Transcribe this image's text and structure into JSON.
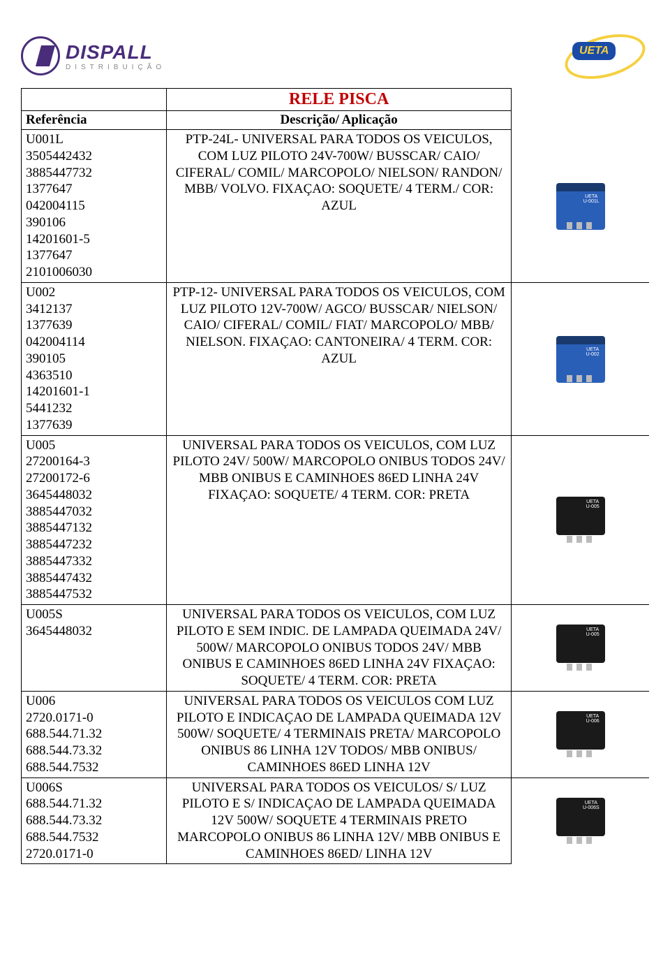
{
  "header": {
    "company": "DISPALL",
    "subtitle": "DISTRIBUIÇÃO",
    "brand": "UETA"
  },
  "title": "RELE PISCA",
  "columns": {
    "ref": "Referência",
    "desc": "Descrição/ Aplicação"
  },
  "rows": [
    {
      "ref": "U001L\n3505442432\n3885447732\n1377647\n042004115\n390106\n14201601-5\n1377647\n2101006030",
      "desc": "PTP-24L- UNIVERSAL PARA TODOS OS VEICULOS, COM LUZ PILOTO 24V-700W/ BUSSCAR/ CAIO/ CIFERAL/ COMIL/ MARCOPOLO/ NIELSON/ RANDON/ MBB/ VOLVO. FIXAÇAO: SOQUETE/ 4 TERM./ COR: AZUL",
      "relay_color": "blue",
      "relay_label": "UETA\nU-001L"
    },
    {
      "ref": "U002\n3412137\n1377639\n042004114\n390105\n4363510\n14201601-1\n5441232\n1377639",
      "desc": "PTP-12- UNIVERSAL PARA TODOS OS VEICULOS, COM LUZ PILOTO 12V-700W/ AGCO/ BUSSCAR/ NIELSON/ CAIO/ CIFERAL/ COMIL/ FIAT/ MARCOPOLO/ MBB/ NIELSON. FIXAÇAO: CANTONEIRA/ 4 TERM. COR: AZUL",
      "relay_color": "blue",
      "relay_label": "UETA\nU-002"
    },
    {
      "ref": "U005\n27200164-3\n27200172-6\n3645448032\n3885447032\n3885447132\n3885447232\n3885447332\n3885447432\n3885447532",
      "desc": "UNIVERSAL PARA TODOS OS VEICULOS, COM LUZ PILOTO 24V/ 500W/ MARCOPOLO ONIBUS TODOS 24V/ MBB ONIBUS E CAMINHOES 86ED LINHA 24V FIXAÇAO: SOQUETE/ 4 TERM. COR: PRETA",
      "relay_color": "black",
      "relay_label": "UETA\nU-005"
    },
    {
      "ref": "U005S\n3645448032",
      "desc": "UNIVERSAL PARA TODOS OS VEICULOS, COM LUZ PILOTO E SEM INDIC. DE LAMPADA QUEIMADA 24V/ 500W/ MARCOPOLO ONIBUS TODOS 24V/ MBB ONIBUS E CAMINHOES 86ED LINHA 24V FIXAÇAO: SOQUETE/ 4 TERM. COR: PRETA",
      "relay_color": "black",
      "relay_label": "UETA\nU-005"
    },
    {
      "ref": "U006\n2720.0171-0\n688.544.71.32\n688.544.73.32\n688.544.7532",
      "desc": "UNIVERSAL PARA TODOS OS VEICULOS COM LUZ PILOTO E INDICAÇAO DE LAMPADA QUEIMADA 12V 500W/ SOQUETE/ 4 TERMINAIS PRETA/ MARCOPOLO ONIBUS 86 LINHA 12V TODOS/ MBB ONIBUS/ CAMINHOES 86ED LINHA 12V",
      "relay_color": "black",
      "relay_label": "UETA\nU-006"
    },
    {
      "ref": "U006S\n688.544.71.32\n688.544.73.32\n688.544.7532\n2720.0171-0",
      "desc": "UNIVERSAL PARA TODOS OS VEICULOS/ S/ LUZ PILOTO E S/ INDICAÇAO DE LAMPADA QUEIMADA 12V 500W/ SOQUETE 4 TERMINAIS PRETO MARCOPOLO ONIBUS 86 LINHA 12V/ MBB ONIBUS E CAMINHOES 86ED/ LINHA 12V",
      "relay_color": "black",
      "relay_label": "UETA\nU-006S"
    }
  ]
}
